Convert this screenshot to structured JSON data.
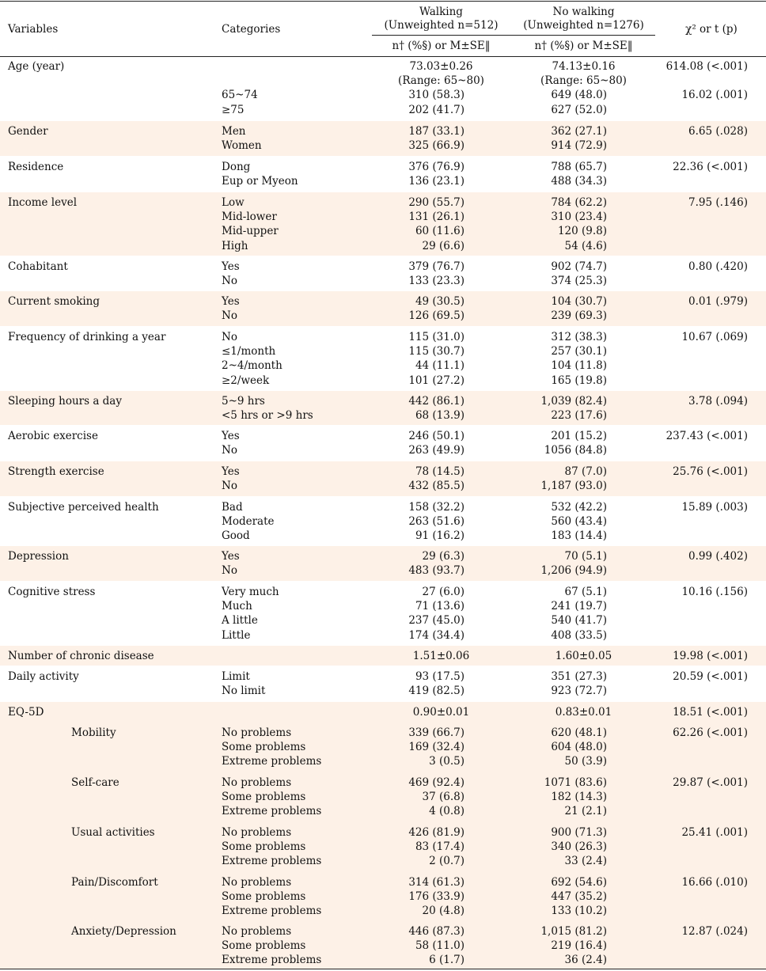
{
  "header": {
    "variables": "Variables",
    "categories": "Categories",
    "walking": "Walking",
    "walking_n": "(Unweighted n=512)",
    "no_walking": "No walking",
    "no_walking_n": "(Unweighted n=1276)",
    "stat_header": "χ² or t (p)",
    "col_sub": "n† (%§) or M±SE‖"
  },
  "rows": [
    {
      "label": "Age (year)",
      "sublabel": "",
      "cats": [
        "",
        "",
        "65~74",
        "≥75"
      ],
      "walk": [
        "73.03±0.26",
        "(Range: 65~80)",
        "310 (58.3)",
        "202 (41.7)"
      ],
      "nowalk": [
        "74.13±0.16",
        "(Range: 65~80)",
        "649 (48.0)",
        "627 (52.0)"
      ],
      "stats": [
        "614.08 (<.001)",
        "",
        "16.02 (.001)",
        ""
      ],
      "shade": false
    },
    {
      "label": "Gender",
      "sublabel": "",
      "cats": [
        "Men",
        "Women"
      ],
      "walk": [
        "187 (33.1)",
        "325 (66.9)"
      ],
      "nowalk": [
        "362 (27.1)",
        "914 (72.9)"
      ],
      "stats": [
        "6.65 (.028)",
        ""
      ],
      "shade": true
    },
    {
      "label": "Residence",
      "sublabel": "",
      "cats": [
        "Dong",
        "Eup or Myeon"
      ],
      "walk": [
        "376 (76.9)",
        "136 (23.1)"
      ],
      "nowalk": [
        "788 (65.7)",
        "488 (34.3)"
      ],
      "stats": [
        "22.36 (<.001)",
        ""
      ],
      "shade": false
    },
    {
      "label": "Income level",
      "sublabel": "",
      "cats": [
        "Low",
        "Mid-lower",
        "Mid-upper",
        "High"
      ],
      "walk": [
        "290 (55.7)",
        "131 (26.1)",
        "60 (11.6)",
        "29 (6.6)"
      ],
      "nowalk": [
        "784 (62.2)",
        "310 (23.4)",
        "120 (9.8)",
        "54 (4.6)"
      ],
      "stats": [
        "7.95 (.146)",
        "",
        "",
        ""
      ],
      "shade": true
    },
    {
      "label": "Cohabitant",
      "sublabel": "",
      "cats": [
        "Yes",
        "No"
      ],
      "walk": [
        "379 (76.7)",
        "133 (23.3)"
      ],
      "nowalk": [
        "902 (74.7)",
        "374 (25.3)"
      ],
      "stats": [
        "0.80 (.420)",
        ""
      ],
      "shade": false
    },
    {
      "label": "Current smoking",
      "sublabel": "",
      "cats": [
        "Yes",
        "No"
      ],
      "walk": [
        "49 (30.5)",
        "126 (69.5)"
      ],
      "nowalk": [
        "104 (30.7)",
        "239 (69.3)"
      ],
      "stats": [
        "0.01 (.979)",
        ""
      ],
      "shade": true
    },
    {
      "label": "Frequency of drinking a year",
      "sublabel": "",
      "cats": [
        "No",
        "≤1/month",
        "2~4/month",
        "≥2/week"
      ],
      "walk": [
        "115 (31.0)",
        "115 (30.7)",
        "44 (11.1)",
        "101 (27.2)"
      ],
      "nowalk": [
        "312 (38.3)",
        "257 (30.1)",
        "104 (11.8)",
        "165 (19.8)"
      ],
      "stats": [
        "10.67 (.069)",
        "",
        "",
        ""
      ],
      "shade": false
    },
    {
      "label": "Sleeping hours a day",
      "sublabel": "",
      "cats": [
        "5~9 hrs",
        "<5 hrs or >9 hrs"
      ],
      "walk": [
        "442 (86.1)",
        "68 (13.9)"
      ],
      "nowalk": [
        "1,039 (82.4)",
        "223 (17.6)"
      ],
      "stats": [
        "3.78 (.094)",
        ""
      ],
      "shade": true
    },
    {
      "label": "Aerobic exercise",
      "sublabel": "",
      "cats": [
        "Yes",
        "No"
      ],
      "walk": [
        "246 (50.1)",
        "263 (49.9)"
      ],
      "nowalk": [
        "201 (15.2)",
        "1056 (84.8)"
      ],
      "stats": [
        "237.43 (<.001)",
        ""
      ],
      "shade": false
    },
    {
      "label": "Strength exercise",
      "sublabel": "",
      "cats": [
        "Yes",
        "No"
      ],
      "walk": [
        "78 (14.5)",
        "432 (85.5)"
      ],
      "nowalk": [
        "87 (7.0)",
        "1,187 (93.0)"
      ],
      "stats": [
        "25.76 (<.001)",
        ""
      ],
      "shade": true
    },
    {
      "label": "Subjective perceived health",
      "sublabel": "",
      "cats": [
        "Bad",
        "Moderate",
        "Good"
      ],
      "walk": [
        "158 (32.2)",
        "263 (51.6)",
        "91 (16.2)"
      ],
      "nowalk": [
        "532 (42.2)",
        "560 (43.4)",
        "183 (14.4)"
      ],
      "stats": [
        "15.89 (.003)",
        "",
        ""
      ],
      "shade": false
    },
    {
      "label": "Depression",
      "sublabel": "",
      "cats": [
        "Yes",
        "No"
      ],
      "walk": [
        "29 (6.3)",
        "483 (93.7)"
      ],
      "nowalk": [
        "70 (5.1)",
        "1,206 (94.9)"
      ],
      "stats": [
        "0.99 (.402)",
        ""
      ],
      "shade": true
    },
    {
      "label": "Cognitive stress",
      "sublabel": "",
      "cats": [
        "Very much",
        "Much",
        "A little",
        "Little"
      ],
      "walk": [
        "27 (6.0)",
        "71 (13.6)",
        "237 (45.0)",
        "174 (34.4)"
      ],
      "nowalk": [
        "67 (5.1)",
        "241 (19.7)",
        "540 (41.7)",
        "408 (33.5)"
      ],
      "stats": [
        "10.16 (.156)",
        "",
        "",
        ""
      ],
      "shade": false
    },
    {
      "label": "Number of chronic disease",
      "sublabel": "",
      "cats": [
        ""
      ],
      "walk": [
        "1.51±0.06"
      ],
      "nowalk": [
        "1.60±0.05"
      ],
      "stats": [
        "19.98 (<.001)"
      ],
      "shade": true
    },
    {
      "label": "Daily activity",
      "sublabel": "",
      "cats": [
        "Limit",
        "No limit"
      ],
      "walk": [
        "93 (17.5)",
        "419 (82.5)"
      ],
      "nowalk": [
        "351 (27.3)",
        "923 (72.7)"
      ],
      "stats": [
        "20.59 (<.001)",
        ""
      ],
      "shade": false
    },
    {
      "label": "EQ-5D",
      "sublabel": "",
      "cats": [
        ""
      ],
      "walk": [
        "0.90±0.01"
      ],
      "nowalk": [
        "0.83±0.01"
      ],
      "stats": [
        "18.51 (<.001)"
      ],
      "shade": true
    },
    {
      "label": "",
      "sublabel": "Mobility",
      "cats": [
        "No problems",
        "Some problems",
        "Extreme problems"
      ],
      "walk": [
        "339 (66.7)",
        "169 (32.4)",
        "3 (0.5)"
      ],
      "nowalk": [
        "620 (48.1)",
        "604 (48.0)",
        "50 (3.9)"
      ],
      "stats": [
        "62.26 (<.001)",
        "",
        ""
      ],
      "shade": true
    },
    {
      "label": "",
      "sublabel": "Self-care",
      "cats": [
        "No problems",
        "Some problems",
        "Extreme problems"
      ],
      "walk": [
        "469 (92.4)",
        "37 (6.8)",
        "4 (0.8)"
      ],
      "nowalk": [
        "1071 (83.6)",
        "182 (14.3)",
        "21 (2.1)"
      ],
      "stats": [
        "29.87 (<.001)",
        "",
        ""
      ],
      "shade": true
    },
    {
      "label": "",
      "sublabel": "Usual activities",
      "cats": [
        "No problems",
        "Some problems",
        "Extreme problems"
      ],
      "walk": [
        "426 (81.9)",
        "83 (17.4)",
        "2 (0.7)"
      ],
      "nowalk": [
        "900 (71.3)",
        "340 (26.3)",
        "33 (2.4)"
      ],
      "stats": [
        "25.41 (.001)",
        "",
        ""
      ],
      "shade": true
    },
    {
      "label": "",
      "sublabel": "Pain/Discomfort",
      "cats": [
        "No problems",
        "Some problems",
        "Extreme problems"
      ],
      "walk": [
        "314 (61.3)",
        "176 (33.9)",
        "20 (4.8)"
      ],
      "nowalk": [
        "692 (54.6)",
        "447 (35.2)",
        "133 (10.2)"
      ],
      "stats": [
        "16.66 (.010)",
        "",
        ""
      ],
      "shade": true
    },
    {
      "label": "",
      "sublabel": "Anxiety/Depression",
      "cats": [
        "No problems",
        "Some problems",
        "Extreme problems"
      ],
      "walk": [
        "446 (87.3)",
        "58 (11.0)",
        "6 (1.7)"
      ],
      "nowalk": [
        "1,015 (81.2)",
        "219 (16.4)",
        "36 (2.4)"
      ],
      "stats": [
        "12.87 (.024)",
        "",
        ""
      ],
      "shade": true
    }
  ]
}
